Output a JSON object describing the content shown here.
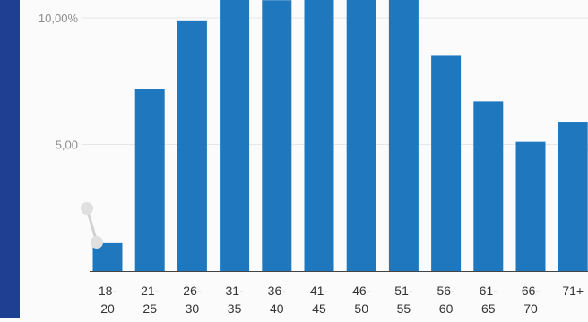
{
  "chart_data": {
    "type": "bar",
    "categories": [
      [
        "18-",
        "20"
      ],
      [
        "21-",
        "25"
      ],
      [
        "26-",
        "30"
      ],
      [
        "31-",
        "35"
      ],
      [
        "36-",
        "40"
      ],
      [
        "41-",
        "45"
      ],
      [
        "46-",
        "50"
      ],
      [
        "51-",
        "55"
      ],
      [
        "56-",
        "60"
      ],
      [
        "61-",
        "65"
      ],
      [
        "66-",
        "70"
      ],
      [
        "71+",
        ""
      ]
    ],
    "values": [
      1.1,
      7.2,
      9.9,
      11.0,
      10.7,
      11.0,
      11.0,
      11.0,
      8.5,
      6.7,
      5.1,
      5.9
    ],
    "y_ticks": [
      {
        "value": 10,
        "label": "10,00%"
      },
      {
        "value": 5,
        "label": "5,00"
      }
    ],
    "ylim": [
      0,
      10.7
    ],
    "grid": true,
    "colors": {
      "bar": "#1f78bd",
      "tick_label": "#8c8c8c",
      "x_label": "#333333",
      "grid": "#e7e7e7",
      "axis": "#444444",
      "strip": "#1f3f93",
      "background": "#fbfbfb"
    }
  }
}
